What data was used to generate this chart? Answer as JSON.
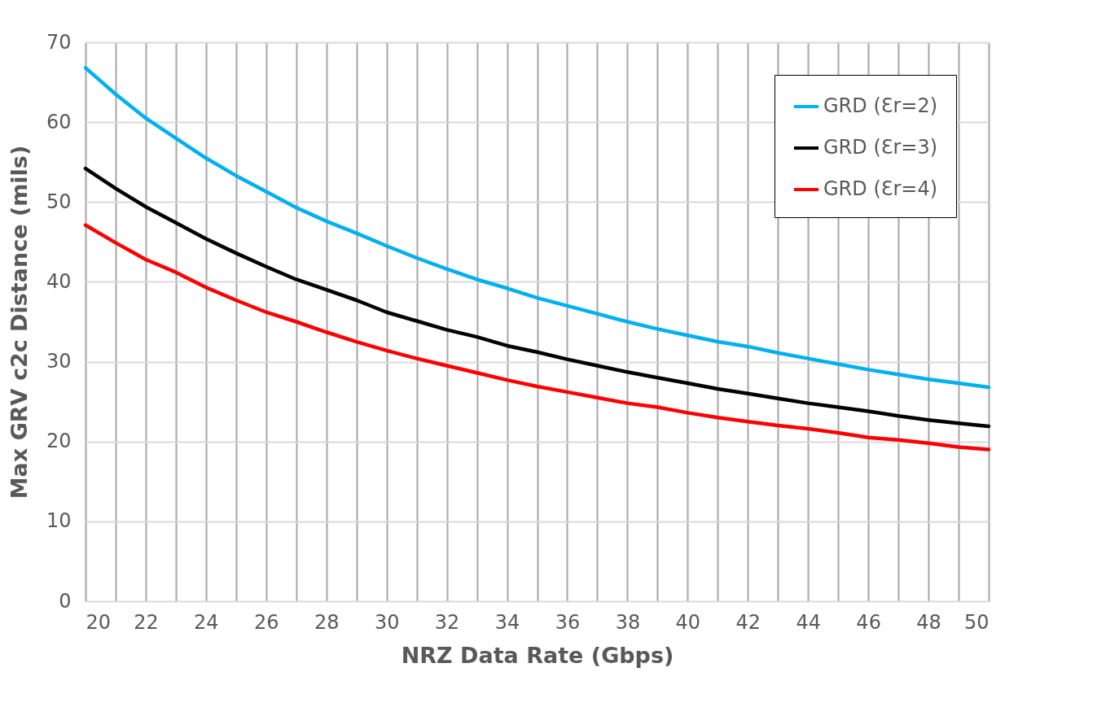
{
  "chart_data": {
    "type": "line",
    "xlabel": "NRZ Data Rate (Gbps)",
    "ylabel": "Max GRV c2c Distance (mils)",
    "x": [
      20,
      21,
      22,
      23,
      24,
      25,
      26,
      27,
      28,
      29,
      30,
      31,
      32,
      33,
      34,
      35,
      36,
      37,
      38,
      39,
      40,
      41,
      42,
      43,
      44,
      45,
      46,
      47,
      48,
      49,
      50
    ],
    "series": [
      {
        "name": "GRD (Ɛr=2)",
        "color": "#00b0f0",
        "values": [
          66.8,
          63.5,
          60.5,
          58.0,
          55.5,
          53.3,
          51.3,
          49.3,
          47.6,
          46.1,
          44.5,
          43.0,
          41.6,
          40.3,
          39.2,
          38.0,
          37.0,
          36.0,
          35.0,
          34.1,
          33.3,
          32.5,
          31.9,
          31.1,
          30.4,
          29.7,
          29.0,
          28.4,
          27.8,
          27.3,
          26.8
        ]
      },
      {
        "name": "GRD (Ɛr=3)",
        "color": "#000000",
        "values": [
          54.2,
          51.7,
          49.4,
          47.4,
          45.4,
          43.6,
          41.9,
          40.3,
          39.0,
          37.7,
          36.2,
          35.1,
          34.0,
          33.1,
          32.0,
          31.2,
          30.3,
          29.5,
          28.7,
          28.0,
          27.3,
          26.6,
          26.0,
          25.4,
          24.8,
          24.3,
          23.8,
          23.2,
          22.7,
          22.3,
          21.9
        ]
      },
      {
        "name": "GRD (Ɛr=4)",
        "color": "#ff0000",
        "values": [
          47.1,
          44.9,
          42.8,
          41.2,
          39.3,
          37.7,
          36.2,
          35.0,
          33.7,
          32.5,
          31.4,
          30.4,
          29.5,
          28.6,
          27.7,
          26.9,
          26.2,
          25.5,
          24.8,
          24.3,
          23.6,
          23.0,
          22.5,
          22.0,
          21.6,
          21.1,
          20.5,
          20.2,
          19.8,
          19.3,
          19.0
        ]
      }
    ],
    "xlim": [
      20,
      50
    ],
    "xticks": [
      20,
      {
        "value": 21,
        "label": null
      },
      22,
      {
        "value": 23,
        "label": null
      },
      24,
      {
        "value": 25,
        "label": null
      },
      26,
      {
        "value": 27,
        "label": null
      },
      28,
      {
        "value": 29,
        "label": null
      },
      30,
      {
        "value": 31,
        "label": null
      },
      32,
      {
        "value": 33,
        "label": null
      },
      34,
      {
        "value": 35,
        "label": null
      },
      36,
      {
        "value": 37,
        "label": null
      },
      38,
      {
        "value": 39,
        "label": null
      },
      40,
      {
        "value": 41,
        "label": null
      },
      42,
      {
        "value": 43,
        "label": null
      },
      44,
      {
        "value": 45,
        "label": null
      },
      46,
      {
        "value": 47,
        "label": null
      },
      48,
      {
        "value": 49,
        "label": null
      },
      50
    ],
    "ylim": [
      0,
      70
    ],
    "yticks": [
      0,
      10,
      20,
      30,
      40,
      50,
      60,
      70
    ],
    "grid": true,
    "legend": "top right"
  }
}
